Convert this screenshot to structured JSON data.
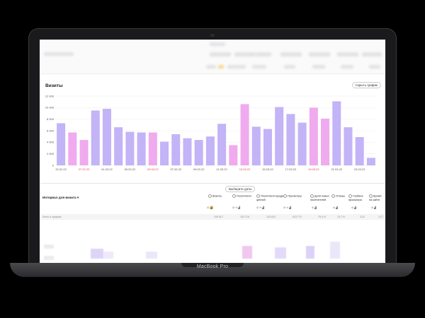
{
  "device": {
    "model_label": "MacBook Pro"
  },
  "section": {
    "title": "Визиты",
    "hide_chart_button": "Скрыть график"
  },
  "dates_button": "Выберите даты",
  "table": {
    "grouping_label": "Интервал для визита",
    "columns": [
      {
        "label": "Визиты"
      },
      {
        "label": "Посетители"
      },
      {
        "label": "Посетители вроде ценной"
      },
      {
        "label": "Просмотры"
      },
      {
        "label": "Доля новых посетителей"
      },
      {
        "label": "Отказы"
      },
      {
        "label": "Глубина просмотра"
      },
      {
        "label": "Время на сайте"
      }
    ],
    "totals_label": "Итого и средние",
    "totals": [
      "150 612",
      "102 716",
      "103 615",
      "613 774",
      "76,4 %",
      "13,7 %",
      "3,22",
      "1:17"
    ]
  },
  "colors": {
    "bar_weekday": "#c3b3f7",
    "bar_weekend": "#f0aaee",
    "red_date": "#d44444"
  },
  "chart_data": {
    "type": "bar",
    "title": "Визиты",
    "ylim": [
      0,
      12000
    ],
    "yticks": [
      0,
      2000,
      4000,
      6000,
      8000,
      10000,
      12000
    ],
    "ytick_labels": [
      "0",
      "2 000",
      "4 000",
      "6 000",
      "8 000",
      "10 000",
      "12 000"
    ],
    "x_tick_labels": [
      {
        "index": 0,
        "label": "20.02.22",
        "weekend": false
      },
      {
        "index": 2,
        "label": "27.02.22",
        "weekend": true
      },
      {
        "index": 4,
        "label": "01.03.22",
        "weekend": false
      },
      {
        "index": 6,
        "label": "05.03.22",
        "weekend": false
      },
      {
        "index": 8,
        "label": "09.03.22",
        "weekend": true
      },
      {
        "index": 10,
        "label": "07.03.22",
        "weekend": false
      },
      {
        "index": 12,
        "label": "09.03.22",
        "weekend": false
      },
      {
        "index": 14,
        "label": "11.03.22",
        "weekend": false
      },
      {
        "index": 16,
        "label": "13.03.22",
        "weekend": true
      },
      {
        "index": 18,
        "label": "15.03.22",
        "weekend": false
      },
      {
        "index": 20,
        "label": "17.03.22",
        "weekend": false
      },
      {
        "index": 22,
        "label": "19.03.22",
        "weekend": true
      },
      {
        "index": 24,
        "label": "21.03.22",
        "weekend": false
      },
      {
        "index": 26,
        "label": "23.03.22",
        "weekend": false
      }
    ],
    "values": [
      7300,
      5700,
      4400,
      9500,
      9800,
      6600,
      5800,
      5700,
      5700,
      4100,
      5400,
      4700,
      4400,
      5000,
      7200,
      3500,
      10600,
      6700,
      6300,
      10100,
      8900,
      7400,
      10000,
      8100,
      11100,
      6600,
      4900,
      1300
    ],
    "weekend": [
      false,
      true,
      true,
      false,
      false,
      false,
      false,
      false,
      true,
      false,
      false,
      false,
      false,
      false,
      false,
      true,
      true,
      false,
      false,
      false,
      false,
      false,
      true,
      true,
      false,
      false,
      false,
      false
    ]
  }
}
